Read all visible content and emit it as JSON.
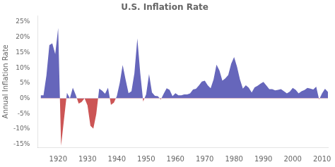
{
  "chart_data": {
    "type": "area",
    "title": "U.S. Inflation Rate",
    "ylabel": "Annual Inflation Rate",
    "x": [
      1914,
      1915,
      1916,
      1917,
      1918,
      1919,
      1920,
      1921,
      1922,
      1923,
      1924,
      1925,
      1926,
      1927,
      1928,
      1929,
      1930,
      1931,
      1932,
      1933,
      1934,
      1935,
      1936,
      1937,
      1938,
      1939,
      1940,
      1941,
      1942,
      1943,
      1944,
      1945,
      1946,
      1947,
      1948,
      1949,
      1950,
      1951,
      1952,
      1953,
      1954,
      1955,
      1956,
      1957,
      1958,
      1959,
      1960,
      1961,
      1962,
      1963,
      1964,
      1965,
      1966,
      1967,
      1968,
      1969,
      1970,
      1971,
      1972,
      1973,
      1974,
      1975,
      1976,
      1977,
      1978,
      1979,
      1980,
      1981,
      1982,
      1983,
      1984,
      1985,
      1986,
      1987,
      1988,
      1989,
      1990,
      1991,
      1992,
      1993,
      1994,
      1995,
      1996,
      1997,
      1998,
      1999,
      2000,
      2001,
      2002,
      2003,
      2004,
      2005,
      2006,
      2007,
      2008,
      2009,
      2010,
      2011,
      2012
    ],
    "values": [
      0.01,
      0.01,
      0.075,
      0.174,
      0.18,
      0.145,
      0.23,
      -0.155,
      -0.068,
      0.018,
      0.0,
      0.035,
      0.011,
      -0.017,
      -0.012,
      0.0,
      -0.023,
      -0.09,
      -0.099,
      -0.051,
      0.032,
      0.025,
      0.015,
      0.035,
      -0.021,
      -0.014,
      0.007,
      0.05,
      0.109,
      0.061,
      0.017,
      0.023,
      0.082,
      0.196,
      0.082,
      -0.01,
      0.013,
      0.079,
      0.019,
      0.008,
      0.007,
      -0.004,
      0.015,
      0.033,
      0.028,
      0.007,
      0.017,
      0.01,
      0.01,
      0.013,
      0.013,
      0.016,
      0.029,
      0.031,
      0.042,
      0.055,
      0.058,
      0.043,
      0.033,
      0.062,
      0.11,
      0.091,
      0.058,
      0.065,
      0.076,
      0.113,
      0.135,
      0.103,
      0.062,
      0.032,
      0.043,
      0.035,
      0.019,
      0.036,
      0.041,
      0.048,
      0.054,
      0.042,
      0.03,
      0.03,
      0.026,
      0.028,
      0.03,
      0.023,
      0.016,
      0.022,
      0.034,
      0.028,
      0.016,
      0.023,
      0.027,
      0.034,
      0.032,
      0.029,
      0.038,
      -0.004,
      0.016,
      0.031,
      0.021
    ],
    "color": {
      "positive": "#6666bb",
      "negative": "#cc5555"
    },
    "xlim": [
      1913,
      2012
    ],
    "xticks": [
      1920,
      1930,
      1940,
      1950,
      1960,
      1970,
      1980,
      1990,
      2000,
      2010
    ],
    "ylim": [
      -0.16,
      0.27
    ],
    "yticks": [
      {
        "value": -0.15,
        "label": "-15%"
      },
      {
        "value": -0.1,
        "label": "-10%"
      },
      {
        "value": -0.05,
        "label": "-5%"
      },
      {
        "value": 0.0,
        "label": "0%"
      },
      {
        "value": 0.05,
        "label": "5%"
      },
      {
        "value": 0.1,
        "label": "10%"
      },
      {
        "value": 0.15,
        "label": "15%"
      },
      {
        "value": 0.2,
        "label": "20%"
      },
      {
        "value": 0.25,
        "label": "25%"
      }
    ],
    "grid": false
  }
}
